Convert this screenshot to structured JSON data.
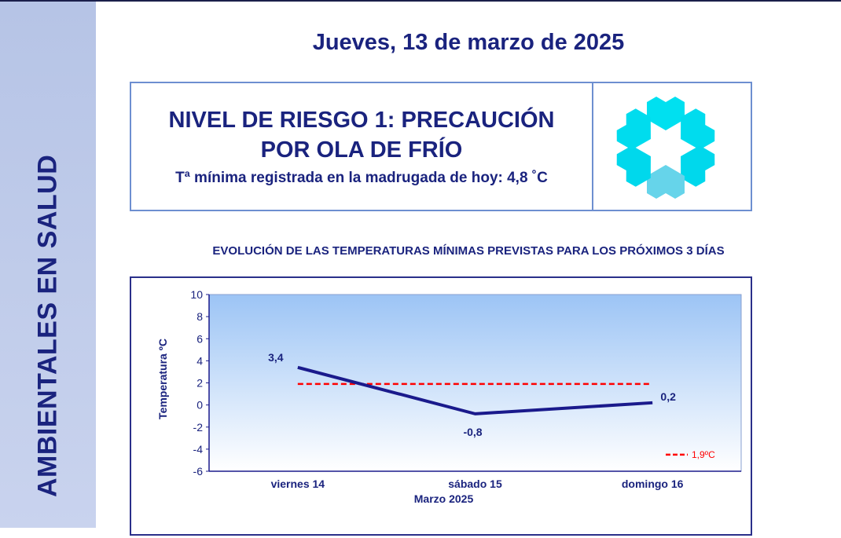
{
  "sidebar": {
    "text": "AMBIENTALES EN SALUD"
  },
  "header": {
    "date": "Jueves, 13 de marzo de 2025"
  },
  "alert": {
    "title_line1": "NIVEL DE RIESGO 1: PRECAUCIÓN",
    "title_line2": "POR OLA DE FRÍO",
    "subtitle": "Tª mínima registrada en la madrugada de hoy: 4,8 ˚C",
    "icon": "snowflake-icon"
  },
  "chart_title": "EVOLUCIÓN DE LAS TEMPERATURAS MÍNIMAS PREVISTAS PARA LOS PRÓXIMOS 3 DÍAS",
  "chart_data": {
    "type": "line",
    "categories": [
      "viernes 14",
      "sábado 15",
      "domingo 16"
    ],
    "series": [
      {
        "name": "Temperatura mínima",
        "values": [
          3.4,
          -0.8,
          0.2
        ],
        "labels": [
          "3,4",
          "-0,8",
          "0,2"
        ],
        "color": "#1a1a8c"
      }
    ],
    "threshold": {
      "value": 1.9,
      "label": "1,9ºC",
      "color": "#ff0000"
    },
    "xlabel": "Marzo  2025",
    "ylabel": "Temperatura ºC",
    "ylim": [
      -6,
      10
    ],
    "yticks": [
      10,
      8,
      6,
      4,
      2,
      0,
      -2,
      -4,
      -6
    ],
    "legend": "bottom-right"
  }
}
